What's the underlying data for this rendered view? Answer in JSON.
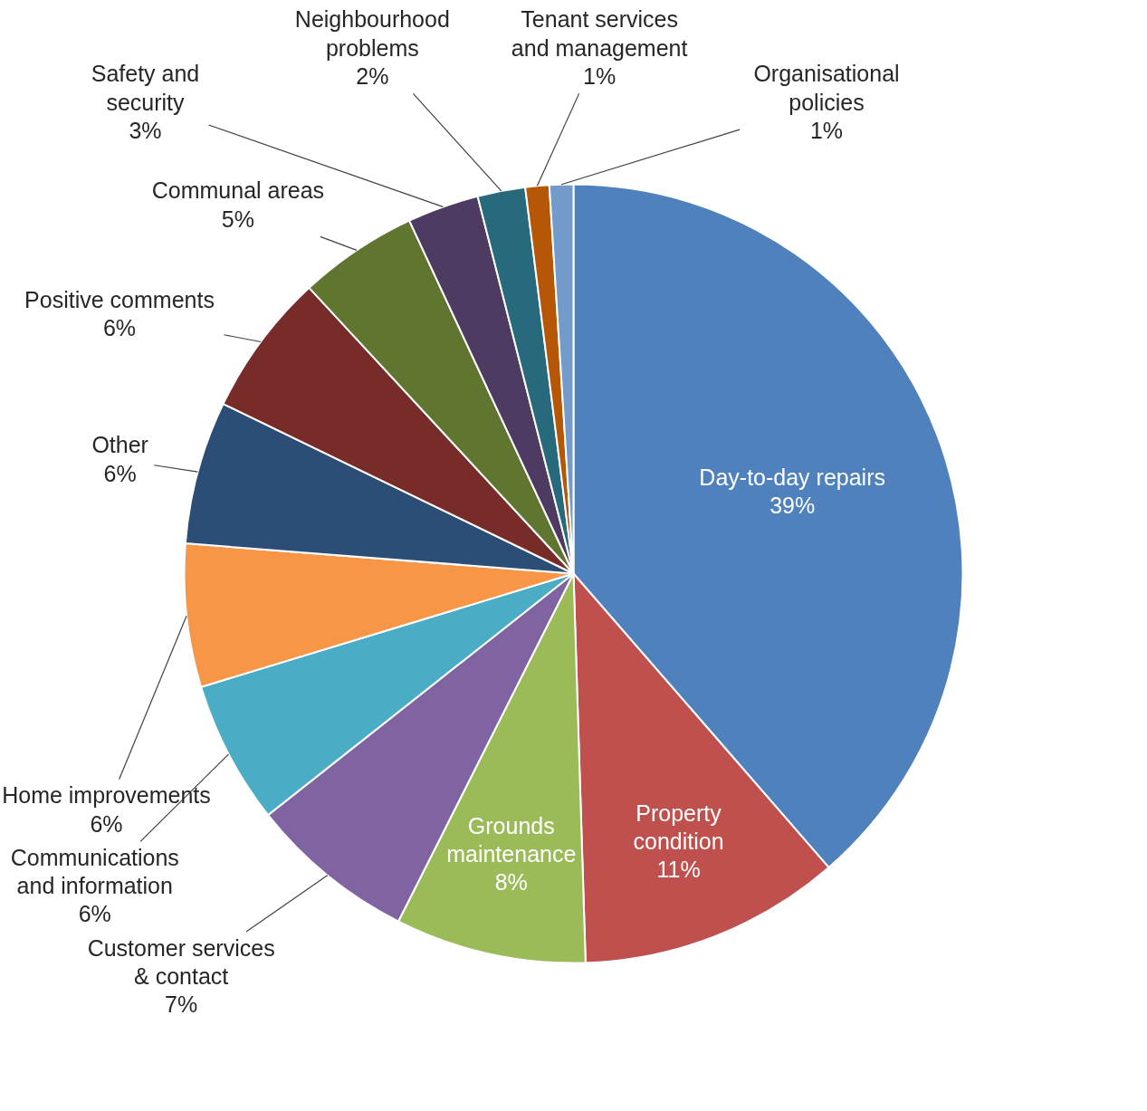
{
  "chart_data": {
    "type": "pie",
    "categories": [
      "Day-to-day repairs",
      "Property condition",
      "Grounds maintenance",
      "Customer services & contact",
      "Communications and information",
      "Home improvements",
      "Other",
      "Positive comments",
      "Communal areas",
      "Safety and security",
      "Neighbourhood problems",
      "Tenant services and management",
      "Organisational policies"
    ],
    "values": [
      39,
      11,
      8,
      7,
      6,
      6,
      6,
      6,
      5,
      3,
      2,
      1,
      1
    ],
    "value_labels": [
      "39%",
      "11%",
      "8%",
      "7%",
      "6%",
      "6%",
      "6%",
      "6%",
      "5%",
      "3%",
      "2%",
      "1%",
      "1%"
    ],
    "colors": [
      "#4f81bd",
      "#c0504d",
      "#9bbb59",
      "#8064a2",
      "#4bacc6",
      "#f79646",
      "#2c4d75",
      "#772c2a",
      "#5f7530",
      "#4d3b62",
      "#276a7c",
      "#b65708",
      "#729aca"
    ]
  }
}
